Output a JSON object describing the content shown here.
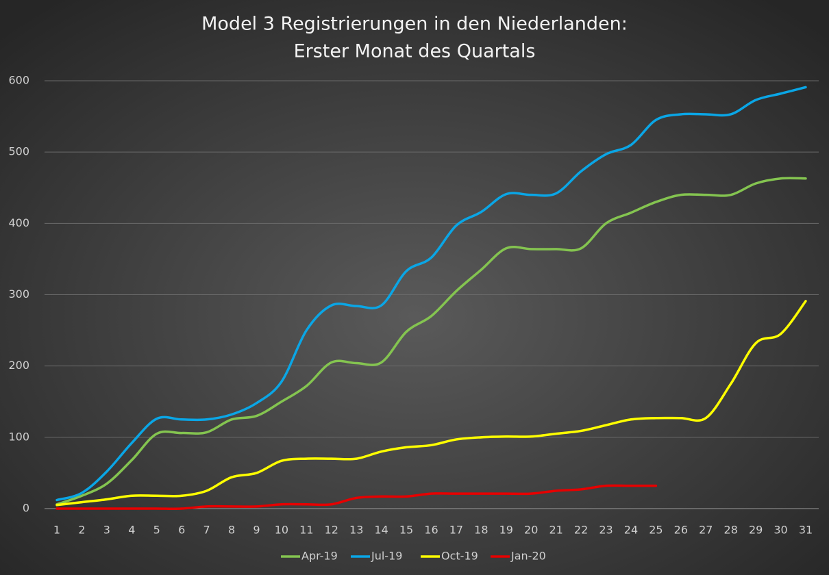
{
  "chart_data": {
    "type": "line",
    "title": [
      "Model 3 Registrierungen in den Niederlanden:",
      "Erster Monat des Quartals"
    ],
    "categories": [
      "1",
      "2",
      "3",
      "4",
      "5",
      "6",
      "7",
      "8",
      "9",
      "10",
      "11",
      "12",
      "13",
      "14",
      "15",
      "16",
      "17",
      "18",
      "19",
      "20",
      "21",
      "22",
      "23",
      "24",
      "25",
      "26",
      "27",
      "28",
      "29",
      "30",
      "31"
    ],
    "series": [
      {
        "name": "Apr-19",
        "color": "#84c450",
        "values": [
          6,
          18,
          35,
          68,
          105,
          106,
          107,
          125,
          130,
          150,
          172,
          205,
          204,
          205,
          248,
          270,
          305,
          335,
          365,
          364,
          364,
          365,
          400,
          415,
          430,
          440,
          440,
          440,
          456,
          463,
          463
        ]
      },
      {
        "name": "Jul-19",
        "color": "#0aa6e6",
        "values": [
          12,
          22,
          52,
          92,
          126,
          125,
          125,
          132,
          148,
          178,
          250,
          285,
          284,
          285,
          333,
          352,
          397,
          416,
          441,
          440,
          442,
          473,
          497,
          510,
          545,
          553,
          553,
          553,
          573,
          582,
          591
        ]
      },
      {
        "name": "Oct-19",
        "color": "#ffff00",
        "values": [
          5,
          9,
          13,
          18,
          18,
          18,
          25,
          44,
          50,
          67,
          70,
          70,
          70,
          80,
          86,
          89,
          97,
          100,
          101,
          101,
          105,
          109,
          117,
          125,
          127,
          127,
          127,
          175,
          232,
          245,
          291
        ]
      },
      {
        "name": "Jan-20",
        "color": "#e60000",
        "values": [
          0,
          0,
          0,
          0,
          0,
          0,
          3,
          3,
          3,
          6,
          6,
          6,
          15,
          17,
          17,
          21,
          21,
          21,
          21,
          21,
          25,
          27,
          32,
          32,
          32,
          null,
          null,
          null,
          null,
          null,
          null
        ]
      }
    ],
    "ylim": [
      0,
      600
    ],
    "yticks": [
      0,
      100,
      200,
      300,
      400,
      500,
      600
    ],
    "grid": true,
    "legend": "bottom"
  }
}
